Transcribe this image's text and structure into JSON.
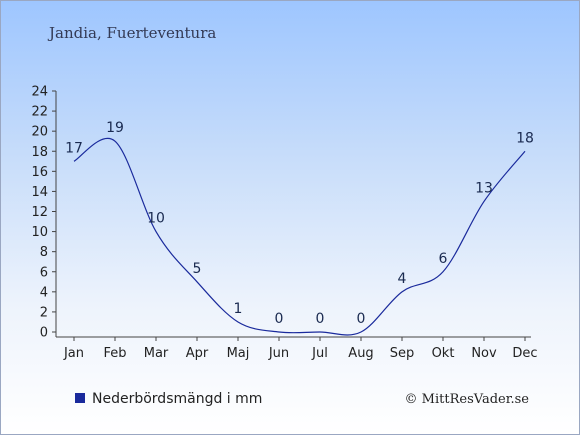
{
  "chart_data": {
    "type": "line",
    "title": "Jandia, Fuerteventura",
    "categories": [
      "Jan",
      "Feb",
      "Mar",
      "Apr",
      "Maj",
      "Jun",
      "Jul",
      "Aug",
      "Sep",
      "Okt",
      "Nov",
      "Dec"
    ],
    "series": [
      {
        "name": "Nederbördsmängd i mm",
        "values": [
          17,
          19,
          10,
          5,
          1,
          0,
          0,
          0,
          4,
          6,
          13,
          18
        ],
        "labels": [
          "17",
          "19",
          "10",
          "5",
          "1",
          "0",
          "0",
          "0",
          "4",
          "6",
          "13",
          "18"
        ]
      }
    ],
    "ylim": [
      0,
      24
    ],
    "yticks": [
      0,
      2,
      4,
      6,
      8,
      10,
      12,
      14,
      16,
      18,
      20,
      22,
      24
    ],
    "grid": false,
    "legend_position": "bottom-left",
    "colors": {
      "line": "#1a2a9c",
      "legend_marker": "#1a2a9c",
      "text": "#1a2a50"
    }
  },
  "copyright": "© MittResVader.se"
}
